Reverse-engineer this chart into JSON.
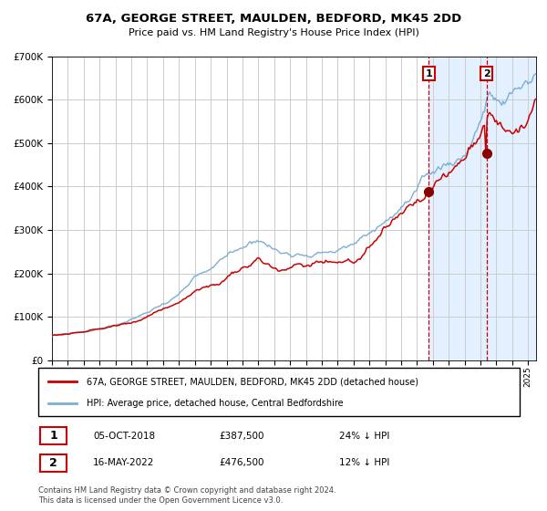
{
  "title": "67A, GEORGE STREET, MAULDEN, BEDFORD, MK45 2DD",
  "subtitle": "Price paid vs. HM Land Registry's House Price Index (HPI)",
  "hpi_label": "HPI: Average price, detached house, Central Bedfordshire",
  "price_label": "67A, GEORGE STREET, MAULDEN, BEDFORD, MK45 2DD (detached house)",
  "sale1_date": "05-OCT-2018",
  "sale1_price": 387500,
  "sale1_pct": "24% ↓ HPI",
  "sale1_x": 2018.75,
  "sale2_date": "16-MAY-2022",
  "sale2_price": 476500,
  "sale2_pct": "12% ↓ HPI",
  "sale2_x": 2022.37,
  "copyright": "Contains HM Land Registry data © Crown copyright and database right 2024.\nThis data is licensed under the Open Government Licence v3.0.",
  "hpi_color": "#7bafd4",
  "price_color": "#cc0000",
  "shade_color": "#ddeeff",
  "vline_color": "#cc0000",
  "dot_color": "#880000",
  "grid_color": "#cccccc",
  "bg_color": "#ffffff",
  "ylim": [
    0,
    700000
  ],
  "xlim": [
    1995.0,
    2025.5
  ]
}
